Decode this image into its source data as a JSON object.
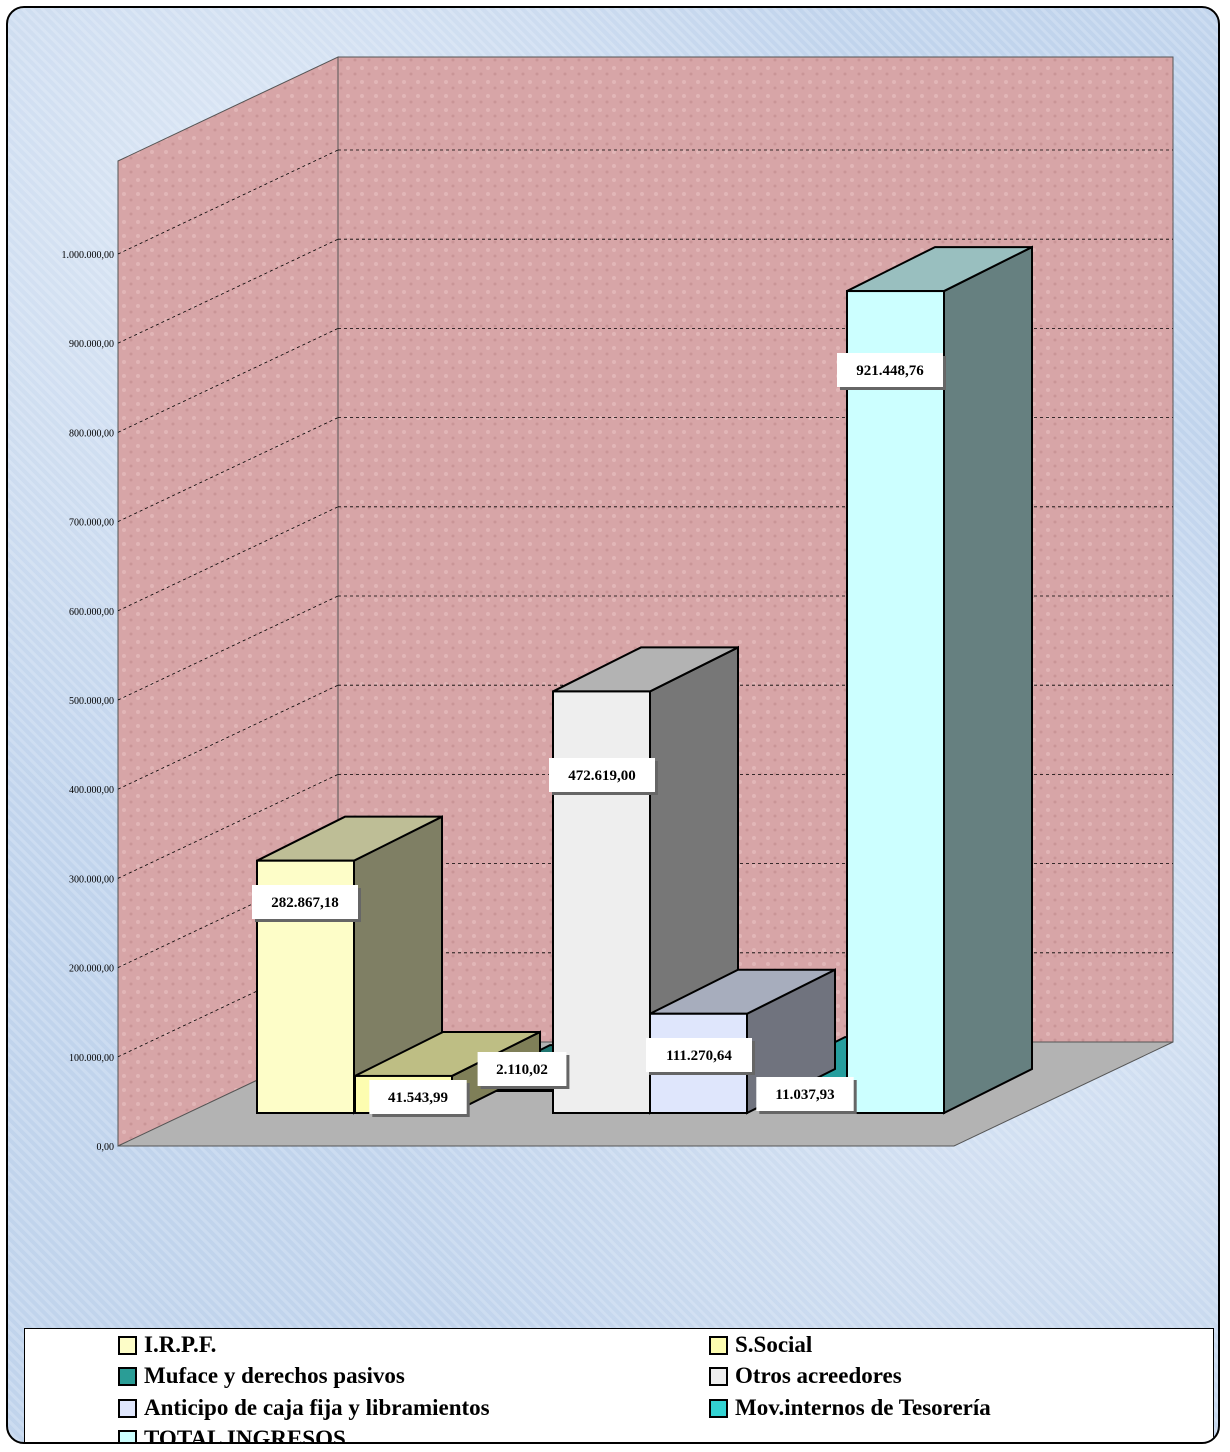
{
  "chart_data": {
    "type": "bar",
    "title": "",
    "xlabel": "",
    "ylabel": "",
    "ylim": [
      0,
      1000000
    ],
    "y_ticks": [
      "0,00",
      "100.000,00",
      "200.000,00",
      "300.000,00",
      "400.000,00",
      "500.000,00",
      "600.000,00",
      "700.000,00",
      "800.000,00",
      "900.000,00",
      "1.000.000,00"
    ],
    "grid": true,
    "legend_position": "bottom",
    "series": [
      {
        "name": "I.R.P.F.",
        "value": 282867.18,
        "label": "282.867,18",
        "color": "#fdfdc8"
      },
      {
        "name": "S.Social",
        "value": 41543.99,
        "label": "41.543,99",
        "color": "#fdfdb0"
      },
      {
        "name": "Muface y derechos pasivos",
        "value": 2110.02,
        "label": "2.110,02",
        "color": "#2a9d96"
      },
      {
        "name": "Otros acreedores",
        "value": 472619.0,
        "label": "472.619,00",
        "color": "#eeeeee"
      },
      {
        "name": "Anticipo de caja fija y libramientos",
        "value": 111270.64,
        "label": "111.270,64",
        "color": "#dfe6fc"
      },
      {
        "name": "Mov.internos de Tesorería",
        "value": 11037.93,
        "label": "11.037,93",
        "color": "#33d2d2"
      },
      {
        "name": "TOTAL INGRESOS",
        "value": 921448.76,
        "label": "921.448,76",
        "color": "#ccffff"
      }
    ]
  }
}
